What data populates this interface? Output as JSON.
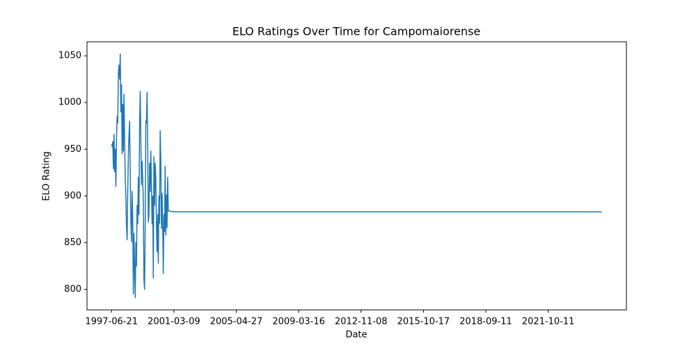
{
  "chart_data": {
    "type": "line",
    "title": "ELO Ratings Over Time for Campomaiorense",
    "xlabel": "Date",
    "ylabel": "ELO Rating",
    "x": [
      0,
      1,
      2,
      3,
      4,
      5,
      6,
      7,
      8,
      9,
      10,
      11,
      12,
      13,
      14,
      15,
      16,
      17,
      18,
      19,
      20,
      21,
      22,
      23,
      24,
      25,
      26,
      27,
      28,
      29,
      30,
      31,
      32,
      33,
      34,
      35,
      36,
      37,
      38,
      39,
      40,
      41,
      42,
      43,
      44,
      45,
      46,
      47,
      48,
      49,
      50,
      51,
      52,
      53,
      54,
      55,
      56,
      57,
      58,
      59,
      60,
      61,
      62,
      63,
      64,
      65,
      66,
      67,
      68,
      69,
      70,
      71,
      72,
      73,
      74,
      75,
      76,
      77,
      78,
      79,
      80,
      81,
      82,
      83,
      84,
      85,
      86,
      87,
      88,
      89,
      90,
      91,
      100,
      786
    ],
    "values": [
      955,
      953,
      958,
      929,
      966,
      926,
      950,
      910,
      962,
      985,
      978,
      1032,
      1040,
      1025,
      1052,
      990,
      1019,
      945,
      998,
      948,
      1009,
      960,
      918,
      900,
      866,
      853,
      905,
      944,
      966,
      980,
      922,
      874,
      851,
      905,
      877,
      795,
      860,
      823,
      791,
      850,
      825,
      890,
      870,
      920,
      880,
      975,
      1012,
      962,
      912,
      937,
      918,
      895,
      810,
      800,
      870,
      980,
      978,
      1011,
      950,
      872,
      880,
      935,
      905,
      948,
      912,
      870,
      900,
      812,
      942,
      890,
      935,
      920,
      870,
      840,
      880,
      828,
      900,
      871,
      970,
      940,
      865,
      903,
      870,
      817,
      880,
      862,
      932,
      858,
      901,
      866,
      920,
      884,
      883,
      883
    ],
    "color": "#1f77b4",
    "xlim": [
      -39.3,
      825.3
    ],
    "xticks": [
      {
        "value": 0,
        "label": "1997-06-21"
      },
      {
        "value": 100,
        "label": "2001-03-09"
      },
      {
        "value": 200,
        "label": "2005-04-27"
      },
      {
        "value": 300,
        "label": "2009-03-16"
      },
      {
        "value": 400,
        "label": "2012-11-08"
      },
      {
        "value": 500,
        "label": "2015-10-17"
      },
      {
        "value": 600,
        "label": "2018-09-11"
      },
      {
        "value": 700,
        "label": "2021-10-11"
      }
    ],
    "ylim": [
      778,
      1065
    ],
    "yticks": [
      800,
      850,
      900,
      950,
      1000,
      1050
    ],
    "grid": false
  }
}
